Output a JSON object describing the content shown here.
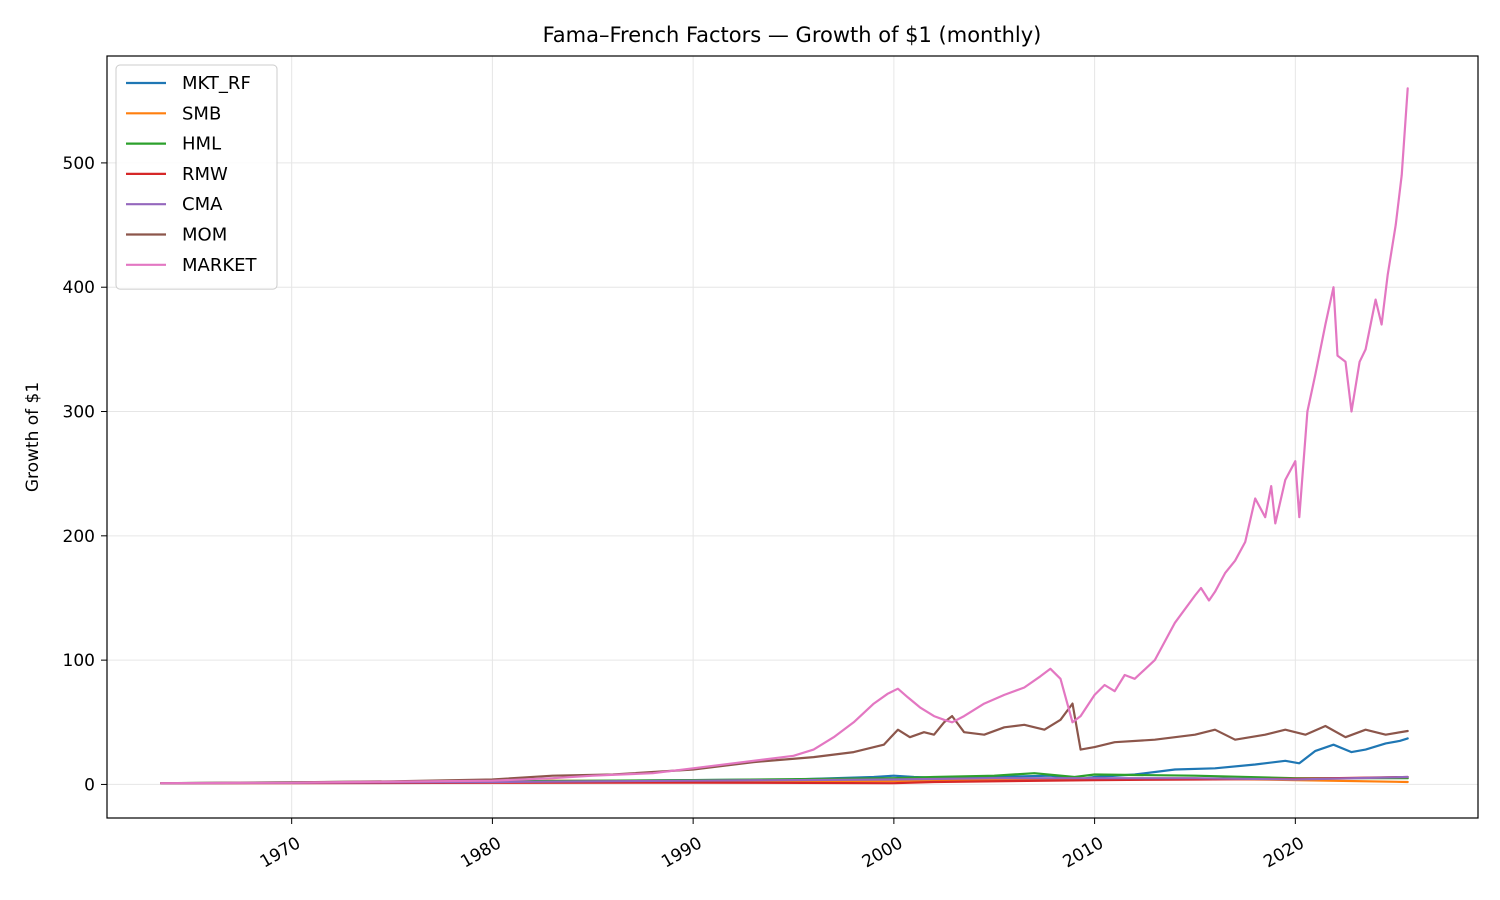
{
  "chart_data": {
    "type": "line",
    "title": "Fama–French Factors — Growth of $1 (monthly)",
    "xlabel": "",
    "ylabel": "Growth of $1",
    "xlim": [
      1960.8,
      2029.1
    ],
    "ylim": [
      -27,
      586
    ],
    "xticks": [
      1970,
      1980,
      1990,
      2000,
      2010,
      2020
    ],
    "yticks": [
      0,
      100,
      200,
      300,
      400,
      500
    ],
    "grid": true,
    "legend_position": "top-left",
    "series": [
      {
        "name": "MKT_RF",
        "color": "#1f77b4",
        "x": [
          1963.5,
          1970,
          1980,
          1990,
          1995,
          1999,
          2000,
          2001,
          2002.8,
          2005,
          2007.8,
          2009.2,
          2010,
          2012,
          2014,
          2016,
          2018,
          2019.5,
          2020.2,
          2021,
          2021.9,
          2022.8,
          2023.5,
          2024.5,
          2025.2,
          2025.6
        ],
        "y": [
          1,
          1.3,
          2,
          3.5,
          4,
          6,
          7,
          6,
          5,
          6,
          7,
          4,
          6,
          8,
          12,
          13,
          16,
          19,
          17,
          27,
          32,
          26,
          28,
          33,
          35,
          37
        ]
      },
      {
        "name": "SMB",
        "color": "#ff7f0e",
        "x": [
          1963.5,
          1970,
          1980,
          1983,
          1990,
          2000,
          2005,
          2010,
          2015,
          2020,
          2025.6
        ],
        "y": [
          1,
          1.3,
          2,
          3,
          2.5,
          2.8,
          4,
          4.5,
          4.8,
          3.5,
          2
        ]
      },
      {
        "name": "HML",
        "color": "#2ca02c",
        "x": [
          1963.5,
          1970,
          1980,
          1990,
          2000,
          2002,
          2005,
          2007,
          2009,
          2010,
          2015,
          2020,
          2025.6
        ],
        "y": [
          1,
          1.8,
          2.5,
          3.5,
          5,
          6,
          7,
          9,
          6,
          8,
          7,
          5,
          5
        ]
      },
      {
        "name": "RMW",
        "color": "#d62728",
        "x": [
          1963.5,
          1970,
          1980,
          1990,
          2000,
          2002,
          2010,
          2015,
          2020,
          2025.6
        ],
        "y": [
          1,
          1,
          1.3,
          1.5,
          1,
          2,
          3.5,
          4,
          4.5,
          6
        ]
      },
      {
        "name": "CMA",
        "color": "#9467bd",
        "x": [
          1963.5,
          1970,
          1980,
          1990,
          2000,
          2005,
          2010,
          2015,
          2020,
          2025.6
        ],
        "y": [
          1,
          1.3,
          2,
          3,
          4,
          5,
          5,
          5,
          4,
          6
        ]
      },
      {
        "name": "MOM",
        "color": "#8c564b",
        "x": [
          1963.5,
          1970,
          1975,
          1980,
          1983,
          1986,
          1990,
          1993,
          1996,
          1998,
          1999.5,
          2000.2,
          2000.8,
          2001.5,
          2002,
          2002.5,
          2002.9,
          2003.5,
          2004.5,
          2005.5,
          2006.5,
          2007.5,
          2008.3,
          2008.9,
          2009.3,
          2010,
          2011,
          2013,
          2015,
          2016,
          2017,
          2018.5,
          2019.5,
          2020.5,
          2021.5,
          2022.5,
          2023.5,
          2024.5,
          2025.6
        ],
        "y": [
          1,
          1.6,
          2.5,
          4,
          7,
          8,
          12,
          18,
          22,
          26,
          32,
          44,
          38,
          42,
          40,
          50,
          55,
          42,
          40,
          46,
          48,
          44,
          52,
          65,
          28,
          30,
          34,
          36,
          40,
          44,
          36,
          40,
          44,
          40,
          47,
          38,
          44,
          40,
          43
        ]
      },
      {
        "name": "MARKET",
        "color": "#e377c2",
        "x": [
          1963.5,
          1970,
          1980,
          1983,
          1985,
          1988,
          1990,
          1992,
          1994,
          1995,
          1996,
          1997,
          1998,
          1999,
          1999.7,
          2000.2,
          2000.7,
          2001.3,
          2002,
          2002.5,
          2002.9,
          2003.5,
          2004.5,
          2005.5,
          2006.5,
          2007.3,
          2007.8,
          2008.3,
          2008.9,
          2009.3,
          2010,
          2010.5,
          2011,
          2011.5,
          2012,
          2013,
          2014,
          2015,
          2015.3,
          2015.7,
          2016,
          2016.5,
          2017,
          2017.5,
          2018,
          2018.5,
          2018.8,
          2019,
          2019.5,
          2020,
          2020.2,
          2020.6,
          2021,
          2021.5,
          2021.9,
          2022.1,
          2022.5,
          2022.8,
          2023.2,
          2023.5,
          2024,
          2024.3,
          2024.6,
          2025,
          2025.3,
          2025.6
        ],
        "y": [
          1,
          1.5,
          3,
          5,
          7,
          9,
          13,
          17,
          21,
          23,
          28,
          38,
          50,
          65,
          73,
          77,
          70,
          62,
          55,
          52,
          50,
          55,
          65,
          72,
          78,
          87,
          93,
          85,
          50,
          55,
          72,
          80,
          75,
          88,
          85,
          100,
          130,
          152,
          158,
          148,
          155,
          170,
          180,
          195,
          230,
          215,
          240,
          210,
          245,
          260,
          215,
          300,
          330,
          370,
          400,
          345,
          340,
          300,
          340,
          350,
          390,
          370,
          410,
          450,
          490,
          560
        ]
      }
    ]
  }
}
